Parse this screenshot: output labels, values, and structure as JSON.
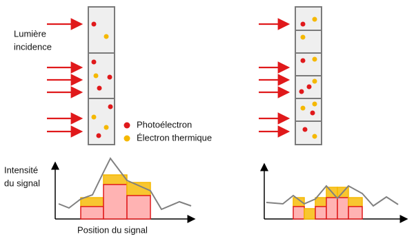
{
  "label_light": [
    "Lumière",
    "incidence"
  ],
  "legend": {
    "photoelectron": "Photoélectron",
    "thermal": "Électron thermique"
  },
  "y_axis_label": [
    "Intensité",
    "du signal"
  ],
  "x_axis_label": "Position du signal",
  "left_plot": {
    "photoelectron": [
      1.8,
      5.0,
      3.4
    ],
    "thermal": [
      1.3,
      1.4,
      1.9
    ],
    "signal": [
      2.2,
      1.6,
      2.9,
      3.5,
      6.8,
      8.8,
      5.6,
      4.1,
      1.4,
      2.5,
      1.9
    ]
  },
  "right_plot": {
    "photoelectron": [
      1.8,
      0,
      1.8,
      3.1,
      3.1,
      1.8
    ],
    "thermal": [
      1.3,
      1.5,
      1.3,
      1.5,
      1.5,
      1.3
    ],
    "signal": [
      2.4,
      2.2,
      3.4,
      2.2,
      2.9,
      4.8,
      3.0,
      4.8,
      3.7,
      1.9,
      3.2,
      2.1
    ]
  }
}
